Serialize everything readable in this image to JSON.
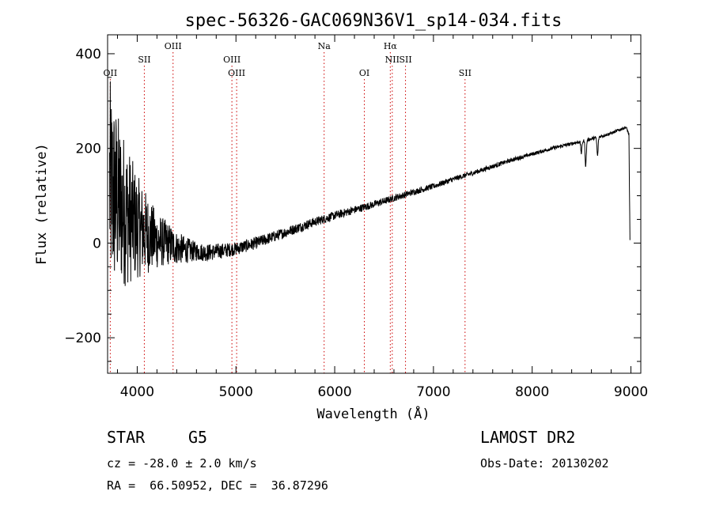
{
  "chart_data": {
    "type": "line",
    "title": "spec-56326-GAC069N36V1_sp14-034.fits",
    "xlabel": "Wavelength (Å)",
    "ylabel": "Flux (relative)",
    "xlim": [
      3700,
      9100
    ],
    "ylim": [
      -275,
      440
    ],
    "xticks": [
      4000,
      5000,
      6000,
      7000,
      8000,
      9000
    ],
    "yticks": [
      -200,
      0,
      200,
      400
    ],
    "grid": false,
    "line_color": "#000000",
    "marker_color": "#cc0000",
    "spectral_lines": [
      {
        "label": "OII",
        "wavelength": 3727,
        "row": "low"
      },
      {
        "label": "SII",
        "wavelength": 4072,
        "row": "mid"
      },
      {
        "label": "OIII",
        "wavelength": 4363,
        "row": "top"
      },
      {
        "label": "OIII",
        "wavelength": 4959,
        "row": "mid"
      },
      {
        "label": "OIII",
        "wavelength": 5007,
        "row": "low"
      },
      {
        "label": "Na",
        "wavelength": 5893,
        "row": "top"
      },
      {
        "label": "OI",
        "wavelength": 6300,
        "row": "low"
      },
      {
        "label": "Hα",
        "wavelength": 6563,
        "row": "top"
      },
      {
        "label": "NII",
        "wavelength": 6583,
        "row": "mid"
      },
      {
        "label": "SII",
        "wavelength": 6717,
        "row": "mid"
      },
      {
        "label": "SII",
        "wavelength": 7320,
        "row": "low"
      }
    ],
    "series": [
      {
        "continuum": {
          "x": [
            3720,
            3800,
            3900,
            4000,
            4100,
            4200,
            4300,
            4400,
            4500,
            4600,
            4700,
            4800,
            4900,
            5000,
            5200,
            5400,
            5600,
            5800,
            6000,
            6200,
            6400,
            6600,
            6800,
            7000,
            7200,
            7400,
            7600,
            7800,
            8000,
            8200,
            8400,
            8600,
            8800,
            8950,
            8980,
            8990
          ],
          "y": [
            120,
            90,
            60,
            35,
            20,
            5,
            0,
            -10,
            -15,
            -18,
            -20,
            -18,
            -15,
            -12,
            0,
            15,
            30,
            45,
            58,
            70,
            82,
            95,
            108,
            120,
            135,
            148,
            162,
            176,
            188,
            200,
            210,
            220,
            232,
            245,
            230,
            5
          ]
        },
        "noise_amplitude": {
          "x": [
            3720,
            3800,
            3900,
            4000,
            4200,
            4400,
            4600,
            5000,
            5500,
            6000,
            7000,
            8000,
            9000
          ],
          "y": [
            230,
            190,
            150,
            110,
            60,
            35,
            20,
            14,
            11,
            9,
            6,
            4,
            3
          ]
        },
        "absorption": [
          {
            "x": 8542,
            "depth": 55
          },
          {
            "x": 8662,
            "depth": 40
          },
          {
            "x": 8498,
            "depth": 25
          }
        ]
      }
    ]
  },
  "info": {
    "object_class": "STAR",
    "subclass": "G5",
    "redshift": "cz = -28.0 ± 2.0 km/s",
    "coords": "RA =  66.50952, DEC =  36.87296",
    "survey": "LAMOST DR2",
    "obs_date": "Obs-Date: 20130202"
  }
}
